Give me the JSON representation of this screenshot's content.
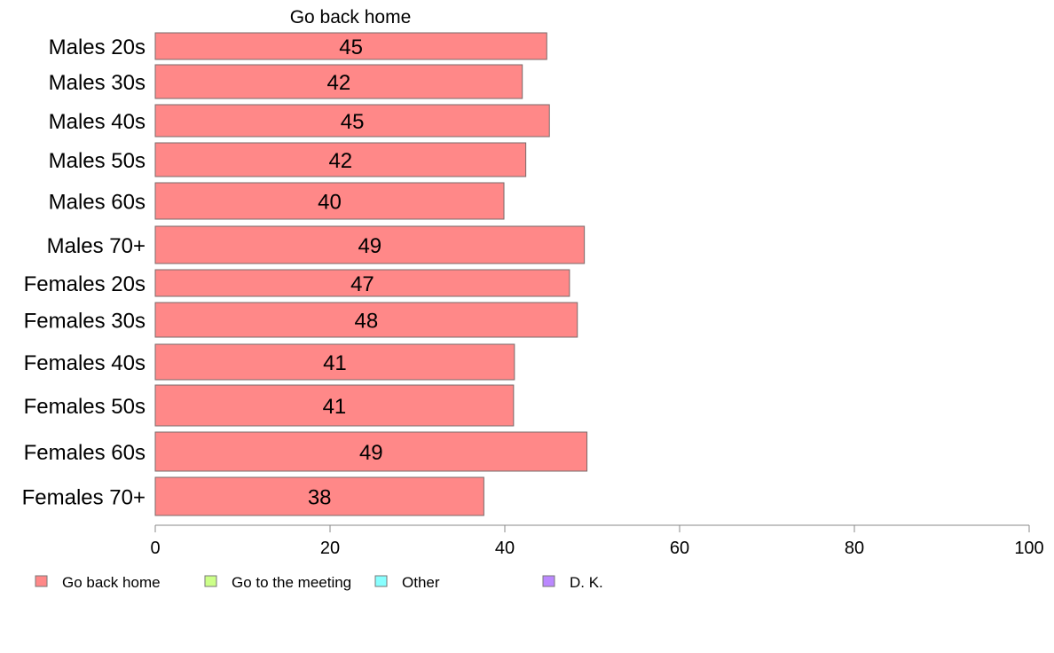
{
  "chart_data": {
    "type": "bar",
    "orientation": "horizontal",
    "header": "Go back home",
    "categories": [
      "Males 20s",
      "Males 30s",
      "Males 40s",
      "Males 50s",
      "Males 60s",
      "Males 70+",
      "Females 20s",
      "Females 30s",
      "Females 40s",
      "Females 50s",
      "Females 60s",
      "Females 70+"
    ],
    "series": [
      {
        "name": "Go back home",
        "color": "#ff8888",
        "values": [
          44.8,
          42.0,
          45.1,
          42.4,
          39.9,
          49.1,
          47.4,
          48.3,
          41.1,
          41.0,
          49.4,
          37.6
        ],
        "labels": [
          "45",
          "42",
          "45",
          "42",
          "40",
          "49",
          "47",
          "48",
          "41",
          "41",
          "49",
          "38"
        ]
      }
    ],
    "xlim": [
      0,
      100
    ],
    "xticks": [
      0,
      20,
      40,
      60,
      80,
      100
    ],
    "xtick_labels": [
      "0",
      "20",
      "40",
      "60",
      "80",
      "100"
    ],
    "grid": false,
    "legend": {
      "position": "bottom",
      "items": [
        {
          "label": "Go back home",
          "color": "#ff8888"
        },
        {
          "label": "Go to the meeting",
          "color": "#ccff88"
        },
        {
          "label": "Other",
          "color": "#88ffff"
        },
        {
          "label": "D. K.",
          "color": "#bb88ff"
        }
      ]
    }
  }
}
